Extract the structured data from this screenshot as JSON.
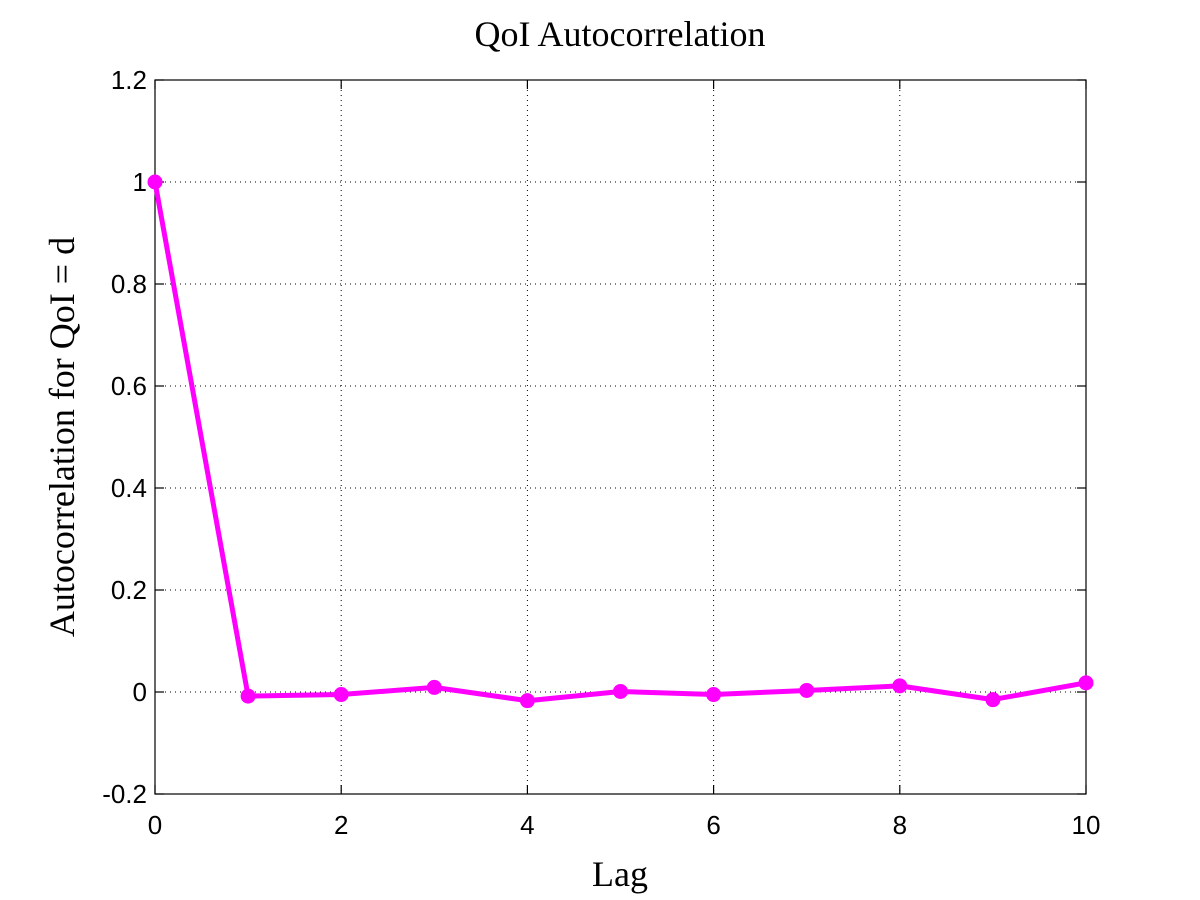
{
  "chart_data": {
    "type": "line",
    "title": "QoI Autocorrelation",
    "xlabel": "Lag",
    "ylabel": "Autocorrelation for QoI = d",
    "xlim": [
      0,
      10
    ],
    "ylim": [
      -0.2,
      1.2
    ],
    "xticks": [
      "0",
      "2",
      "4",
      "6",
      "8",
      "10"
    ],
    "yticks": [
      "-0.2",
      "0",
      "0.2",
      "0.4",
      "0.6",
      "0.8",
      "1",
      "1.2"
    ],
    "grid": true,
    "series": [
      {
        "x": [
          0,
          1,
          2,
          3,
          4,
          5,
          6,
          7,
          8,
          9,
          10
        ],
        "values": [
          1.0,
          -0.008,
          -0.005,
          0.009,
          -0.017,
          0.001,
          -0.005,
          0.003,
          0.012,
          -0.015,
          0.018
        ],
        "color": "#ff00ff",
        "marker": "circle"
      }
    ]
  }
}
